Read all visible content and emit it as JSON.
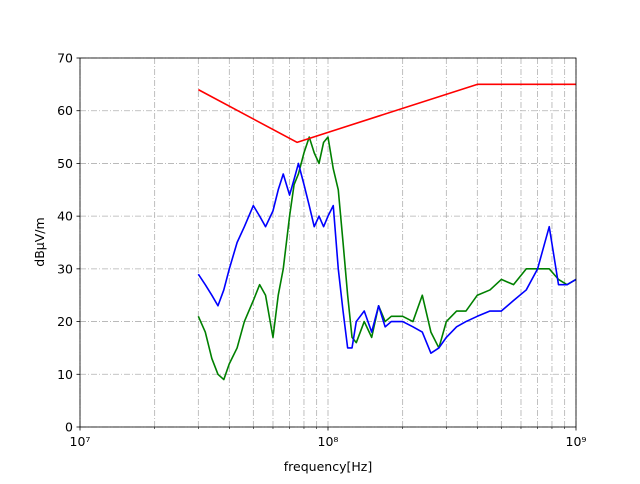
{
  "chart_data": {
    "type": "line",
    "xlabel": "frequency[Hz]",
    "ylabel": "dBμV/m",
    "xscale": "log",
    "grid": true,
    "xlim": [
      10000000,
      1000000000
    ],
    "ylim": [
      0,
      70
    ],
    "xticks": [
      {
        "value": 10000000,
        "label": "10⁷"
      },
      {
        "value": 100000000,
        "label": "10⁸"
      },
      {
        "value": 1000000000,
        "label": "10⁹"
      }
    ],
    "xminor_ticks": [
      20000000,
      30000000,
      40000000,
      50000000,
      60000000,
      70000000,
      80000000,
      90000000,
      200000000,
      300000000,
      400000000,
      500000000,
      600000000,
      700000000,
      800000000,
      900000000
    ],
    "yticks": [
      0,
      10,
      20,
      30,
      40,
      50,
      60,
      70
    ],
    "series": [
      {
        "color": "#008000",
        "x": [
          30000000,
          32000000,
          34000000,
          36000000,
          38000000,
          40000000,
          43000000,
          46000000,
          50000000,
          53000000,
          56000000,
          60000000,
          63000000,
          66000000,
          70000000,
          73000000,
          76000000,
          80000000,
          84000000,
          88000000,
          92000000,
          96000000,
          100000000,
          105000000,
          110000000,
          115000000,
          120000000,
          125000000,
          130000000,
          140000000,
          150000000,
          160000000,
          170000000,
          180000000,
          200000000,
          220000000,
          240000000,
          260000000,
          280000000,
          300000000,
          330000000,
          360000000,
          400000000,
          450000000,
          500000000,
          560000000,
          630000000,
          700000000,
          780000000,
          850000000,
          920000000,
          1000000000
        ],
        "values": [
          21,
          18,
          13,
          10,
          9,
          12,
          15,
          20,
          24,
          27,
          25,
          17,
          25,
          30,
          40,
          46,
          48,
          52,
          55,
          52,
          50,
          54,
          55,
          49,
          45,
          35,
          25,
          17,
          16,
          20,
          17,
          23,
          20,
          21,
          21,
          20,
          25,
          18,
          15,
          20,
          22,
          22,
          25,
          26,
          28,
          27,
          30,
          30,
          30,
          28,
          27,
          28
        ]
      },
      {
        "color": "#0000ff",
        "x": [
          30000000,
          32000000,
          34000000,
          36000000,
          38000000,
          40000000,
          43000000,
          46000000,
          50000000,
          53000000,
          56000000,
          60000000,
          63000000,
          66000000,
          70000000,
          73000000,
          76000000,
          80000000,
          84000000,
          88000000,
          92000000,
          96000000,
          100000000,
          105000000,
          110000000,
          115000000,
          120000000,
          125000000,
          130000000,
          140000000,
          150000000,
          160000000,
          170000000,
          180000000,
          200000000,
          220000000,
          240000000,
          260000000,
          280000000,
          300000000,
          330000000,
          360000000,
          400000000,
          450000000,
          500000000,
          560000000,
          630000000,
          700000000,
          780000000,
          850000000,
          920000000,
          1000000000
        ],
        "values": [
          29,
          27,
          25,
          23,
          26,
          30,
          35,
          38,
          42,
          40,
          38,
          41,
          45,
          48,
          44,
          47,
          50,
          46,
          42,
          38,
          40,
          38,
          40,
          42,
          30,
          22,
          15,
          15,
          20,
          22,
          18,
          23,
          19,
          20,
          20,
          19,
          18,
          14,
          15,
          17,
          19,
          20,
          21,
          22,
          22,
          24,
          26,
          30,
          38,
          27,
          27,
          28
        ]
      },
      {
        "color": "#ff0000",
        "x": [
          30000000,
          75000000,
          400000000,
          1000000000
        ],
        "values": [
          64,
          54,
          65,
          65
        ]
      }
    ]
  }
}
